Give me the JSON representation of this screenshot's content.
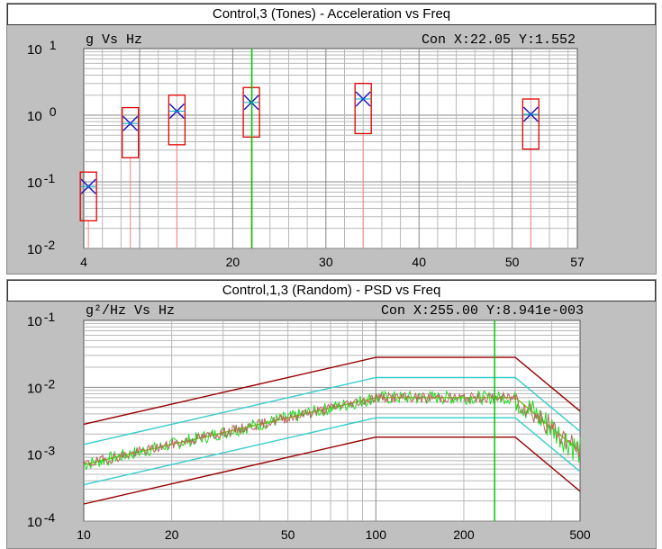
{
  "chart_data": [
    {
      "type": "scatter",
      "title": "Control,3 (Tones) - Acceleration vs Freq",
      "subtitle": "g Vs Hz",
      "cursor_readout": "Con X:22.05 Y:1.552",
      "x_axis": {
        "scale": "linear",
        "range": [
          4,
          57
        ],
        "tick_values": [
          4,
          20,
          30,
          40,
          50,
          57
        ],
        "tick_labels": [
          "4",
          "20",
          "30",
          "40",
          "50",
          "57"
        ]
      },
      "y_axis": {
        "scale": "log",
        "range": [
          0.01,
          10
        ],
        "tick_labels": [
          {
            "base": "10",
            "exp": "1",
            "value": 10
          },
          {
            "base": "10",
            "exp": "0",
            "value": 1
          },
          {
            "base": "10",
            "exp": "-1",
            "value": 0.1
          },
          {
            "base": "10",
            "exp": "-2",
            "value": 0.01
          }
        ]
      },
      "cursor_x": 22.05,
      "tones": [
        {
          "freq": 4.5,
          "value": 0.085,
          "low": 0.026,
          "high": 0.14
        },
        {
          "freq": 9,
          "value": 0.75,
          "low": 0.23,
          "high": 1.3
        },
        {
          "freq": 14,
          "value": 1.15,
          "low": 0.36,
          "high": 2.0
        },
        {
          "freq": 22,
          "value": 1.55,
          "low": 0.47,
          "high": 2.6
        },
        {
          "freq": 34,
          "value": 1.75,
          "low": 0.53,
          "high": 3.0
        },
        {
          "freq": 52,
          "value": 1.03,
          "low": 0.31,
          "high": 1.75
        }
      ],
      "grid": true,
      "colors": {
        "tone_box": "#e00000",
        "tone_marker": "#1010c0",
        "cursor": "#00cc00",
        "stem": "#ff8080"
      }
    },
    {
      "type": "line",
      "title": "Control,1,3 (Random) - PSD vs Freq",
      "subtitle": "g²/Hz Vs Hz",
      "cursor_readout": "Con X:255.00 Y:8.941e-003",
      "x_axis": {
        "scale": "log",
        "range": [
          10,
          500
        ],
        "tick_values": [
          10,
          20,
          50,
          100,
          200,
          500
        ],
        "tick_labels": [
          "10",
          "20",
          "50",
          "100",
          "200",
          "500"
        ]
      },
      "y_axis": {
        "scale": "log",
        "range": [
          0.0001,
          0.1
        ],
        "tick_labels": [
          {
            "base": "10",
            "exp": "-1",
            "value": 0.1
          },
          {
            "base": "10",
            "exp": "-2",
            "value": 0.01
          },
          {
            "base": "10",
            "exp": "-3",
            "value": 0.001
          },
          {
            "base": "10",
            "exp": "-4",
            "value": 0.0001
          }
        ]
      },
      "cursor_x": 255,
      "series": [
        {
          "role": "abort-upper",
          "color": "#990000",
          "points": [
            [
              10,
              0.0028
            ],
            [
              100,
              0.028
            ],
            [
              300,
              0.028
            ],
            [
              500,
              0.0044
            ]
          ]
        },
        {
          "role": "alarm-upper",
          "color": "#33cccc",
          "points": [
            [
              10,
              0.0014
            ],
            [
              100,
              0.014
            ],
            [
              300,
              0.014
            ],
            [
              500,
              0.0022
            ]
          ]
        },
        {
          "role": "alarm-lower",
          "color": "#33cccc",
          "points": [
            [
              10,
              0.00035
            ],
            [
              100,
              0.0035
            ],
            [
              300,
              0.0035
            ],
            [
              500,
              0.00055
            ]
          ]
        },
        {
          "role": "abort-lower",
          "color": "#990000",
          "points": [
            [
              10,
              0.00018
            ],
            [
              100,
              0.0018
            ],
            [
              300,
              0.0018
            ],
            [
              500,
              0.00028
            ]
          ]
        },
        {
          "role": "reference",
          "color": "#66cc00",
          "points": [
            [
              10,
              0.0007
            ],
            [
              100,
              0.007
            ],
            [
              300,
              0.007
            ],
            [
              500,
              0.0011
            ]
          ]
        }
      ],
      "noisy_series": [
        {
          "role": "control",
          "color": "#22dd22",
          "seed": 7,
          "amplitude": 0.2
        },
        {
          "role": "response",
          "color": "#c06060",
          "seed": 19,
          "amplitude": 0.15
        }
      ],
      "grid": true,
      "colors": {
        "cursor": "#00cc00"
      }
    }
  ]
}
